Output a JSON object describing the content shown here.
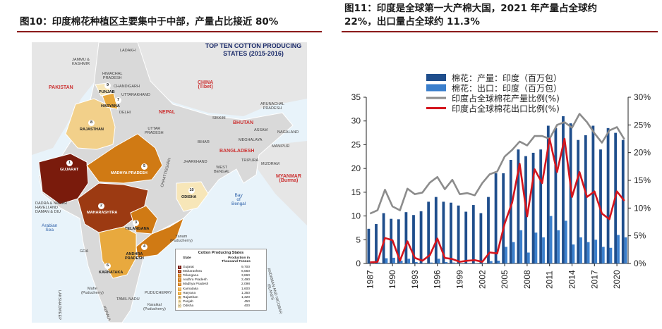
{
  "left_panel": {
    "title": "图10：印度棉花种植区主要集中于中部，产量占比接近 80%",
    "map": {
      "title_line1": "TOP TEN COTTON PRODUCING",
      "title_line2": "STATES (2015-2016)",
      "colors": {
        "water": "#e8f3fa",
        "land": "#d9d9d9",
        "land_border": "#ffffff",
        "foreign": "#e6e6e6",
        "tier1": "#7a1b0c",
        "tier2": "#9c3a12",
        "tier3": "#d07a14",
        "tier4": "#e8a93e",
        "tier5": "#f2d08a",
        "tier6": "#f7e6b8"
      },
      "labels": {
        "ladakh": "LADAKH",
        "jk": "JAMMU &\nKASHMIR",
        "pakistan": "PAKISTAN",
        "hp": "HIMACHAL\nPRADESH",
        "chandigarh": "CHANDIGARH",
        "punjab": "PUNJAB",
        "uttarakhand": "UTTARAKHAND",
        "haryana": "HARYANA",
        "delhi": "DELHI",
        "china": "CHINA\n(Tibet)",
        "nepal": "NEPAL",
        "sikkim": "SIKKIM",
        "arunachal": "ARUNACHAL\nPRADESH",
        "bhutan": "BHUTAN",
        "assam": "ASSAM",
        "nagaland": "NAGALAND",
        "meghalaya": "MEGHALAYA",
        "manipur": "MANIPUR",
        "bangladesh": "BANGLADESH",
        "tripura": "TRIPURA",
        "mizoram": "MIZORAM",
        "myanmar": "MYANMAR\n(Burma)",
        "rajasthan": "RAJASTHAN",
        "up": "UTTAR\nPRADESH",
        "bihar": "BIHAR",
        "jharkhand": "JHARKHAND",
        "wb": "WEST\nBENGAL",
        "gujarat": "GUJARAT",
        "mp": "MADHYA PRADESH",
        "chhattisgarh": "CHHATTISGARH",
        "odisha": "ODISHA",
        "dnh": "DADRA & NAGAR\nHAVELI AND\nDAMAN & DIU",
        "maharashtra": "MAHARASHTRA",
        "telangana": "TELANGANA",
        "arabian": "Arabian\nSea",
        "bay": "Bay\nof\nBengal",
        "yanam": "Yanam\n(Puducherry)",
        "goa": "GOA",
        "ap": "ANDHRA\nPRADESH",
        "karnataka": "KARNATAKA",
        "mahe": "Mahe\n(Puducherry)",
        "puducherry": "PUDUCHERRY",
        "tn": "TAMIL NADU",
        "karaikal": "Karaikal\n(Puducherry)",
        "kerala": "KERALA",
        "lakshadweep": "LAKSHADWEEP",
        "andaman": "ANDAMAN AND NICOBAR\nISLANDS"
      },
      "table": {
        "title": "Cotton Producing States",
        "col_state": "State",
        "col_prod": "Production in\nThousand Tonnes",
        "rows": [
          {
            "rank": "1",
            "state": "Gujarat",
            "value": "9,700"
          },
          {
            "rank": "2",
            "state": "Maharashtra",
            "value": "6,550"
          },
          {
            "rank": "3",
            "state": "Telangana",
            "value": "3,860"
          },
          {
            "rank": "4",
            "state": "Andhra Pradesh",
            "value": "2,490"
          },
          {
            "rank": "5",
            "state": "Madhya Pradesh",
            "value": "2,098"
          },
          {
            "rank": "6",
            "state": "Karnataka",
            "value": "1,600"
          },
          {
            "rank": "7",
            "state": "Haryana",
            "value": "1,350"
          },
          {
            "rank": "8",
            "state": "Rajasthan",
            "value": "1,320"
          },
          {
            "rank": "9",
            "state": "Punjab",
            "value": "450"
          },
          {
            "rank": "10",
            "state": "Odisha",
            "value": "400"
          }
        ]
      }
    }
  },
  "right_panel": {
    "title_line1": "图11：印度是全球第一大产棉大国，2021 年产量占全球约",
    "title_line2": "22%，出口量占全球约 11.3%"
  },
  "chart_data": {
    "type": "bar",
    "x": [
      1987,
      1988,
      1989,
      1990,
      1991,
      1992,
      1993,
      1994,
      1995,
      1996,
      1997,
      1998,
      1999,
      2000,
      2001,
      2002,
      2003,
      2004,
      2005,
      2006,
      2007,
      2008,
      2009,
      2010,
      2011,
      2012,
      2013,
      2014,
      2015,
      2016,
      2017,
      2018,
      2019,
      2020,
      2021
    ],
    "x_tick_labels": [
      "1987",
      "1990",
      "1993",
      "1996",
      "1999",
      "2002",
      "2005",
      "2008",
      "2011",
      "2014",
      "2017",
      "2020"
    ],
    "series": [
      {
        "name": "棉花：产量：印度（百万包）",
        "kind": "bar",
        "axis": "left",
        "color": "#1f4e8c",
        "values": [
          7.3,
          8.3,
          10.6,
          9.4,
          9.3,
          10.8,
          10.2,
          11.0,
          13.0,
          14.0,
          13.0,
          12.8,
          12.2,
          10.9,
          12.3,
          10.6,
          14.0,
          19.0,
          19.0,
          21.8,
          24.0,
          22.6,
          23.3,
          24.0,
          29.0,
          28.5,
          31.0,
          29.5,
          26.0,
          27.0,
          29.0,
          24.0,
          28.5,
          27.5,
          26.0
        ]
      },
      {
        "name": "棉花：出口：印度（百万包）",
        "kind": "bar",
        "axis": "left",
        "color": "#3b7fcc",
        "values": [
          0.3,
          0.2,
          1.1,
          1.2,
          0.6,
          1.0,
          0.3,
          0.1,
          0.2,
          1.0,
          0.3,
          0.2,
          0.1,
          0.1,
          0.1,
          0.1,
          0.5,
          0.6,
          3.5,
          4.5,
          7.0,
          2.3,
          6.5,
          5.5,
          10.0,
          7.0,
          9.0,
          4.0,
          5.5,
          4.5,
          5.0,
          3.5,
          3.3,
          6.0,
          5.5
        ]
      },
      {
        "name": "印度占全球棉花产量比例(%)",
        "kind": "line",
        "axis": "right",
        "color": "#8c8c8c",
        "values": [
          9.0,
          9.6,
          13.3,
          10.3,
          9.6,
          13.5,
          12.5,
          12.8,
          14.6,
          15.6,
          13.4,
          15.1,
          12.5,
          12.7,
          12.3,
          14.5,
          16.1,
          16.6,
          19.3,
          20.5,
          22.0,
          21.3,
          23.0,
          23.0,
          22.5,
          25.0,
          25.5,
          24.5,
          27.0,
          25.5,
          23.5,
          21.8,
          24.0,
          24.6,
          22.4
        ]
      },
      {
        "name": "印度占全球棉花出口比例(%)",
        "kind": "line",
        "axis": "right",
        "color": "#d4141c",
        "values": [
          0.2,
          0.3,
          4.6,
          4.2,
          0.5,
          4.0,
          1.0,
          0.5,
          1.5,
          4.5,
          1.0,
          0.8,
          0.3,
          0.5,
          0.6,
          0.3,
          2.0,
          1.8,
          7.2,
          11.0,
          18.0,
          8.5,
          17.0,
          14.5,
          22.5,
          16.5,
          22.5,
          12.0,
          16.5,
          12.0,
          13.0,
          9.0,
          8.0,
          13.0,
          11.3
        ]
      }
    ],
    "ylim_left": [
      0,
      35
    ],
    "yticks_left": [
      "0",
      "5",
      "10",
      "15",
      "20",
      "25",
      "30",
      "35"
    ],
    "ylim_right": [
      0,
      30
    ],
    "yticks_right": [
      "0%",
      "5%",
      "10%",
      "15%",
      "20%",
      "25%",
      "30%"
    ],
    "legend_position": "top-left"
  }
}
